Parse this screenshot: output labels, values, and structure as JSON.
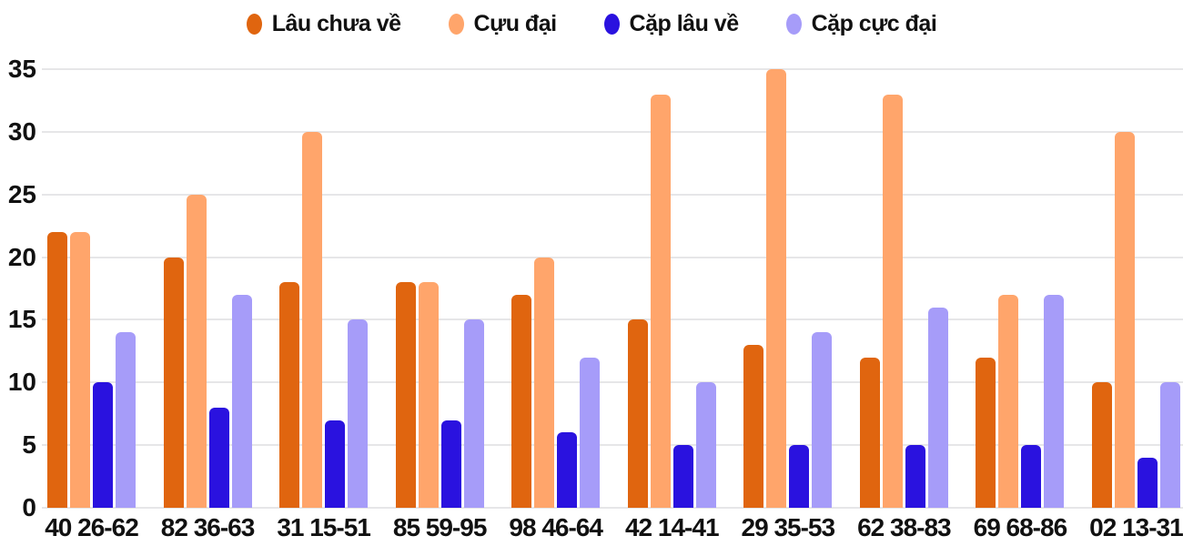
{
  "chart_data": {
    "type": "bar",
    "title": "",
    "xlabel": "",
    "ylabel": "",
    "categories": [
      "40 26-62",
      "82 36-63",
      "31 15-51",
      "85 59-95",
      "98 46-64",
      "42 14-41",
      "29 35-53",
      "62 38-83",
      "69 68-86",
      "02 13-31"
    ],
    "series": [
      {
        "name": "Lâu chưa về",
        "color": "#e0650f",
        "values": [
          22,
          20,
          18,
          18,
          17,
          15,
          13,
          12,
          12,
          10
        ]
      },
      {
        "name": "Cựu đại",
        "color": "#ffa56b",
        "values": [
          22,
          25,
          30,
          18,
          20,
          33,
          35,
          33,
          17,
          30
        ]
      },
      {
        "name": "Cặp lâu về",
        "color": "#2a12df",
        "values": [
          10,
          8,
          7,
          7,
          6,
          5,
          5,
          5,
          5,
          4
        ]
      },
      {
        "name": "Cặp cực đại",
        "color": "#a69cf9",
        "values": [
          14,
          17,
          15,
          15,
          12,
          10,
          14,
          16,
          17,
          10
        ]
      }
    ],
    "ylim": [
      0,
      35
    ],
    "yticks": [
      0,
      5,
      10,
      15,
      20,
      25,
      30,
      35
    ],
    "grid": true,
    "legend_position": "top",
    "colors": {
      "background": "#ffffff",
      "gridline": "#e6e6e8",
      "axis_text": "#111111"
    }
  }
}
